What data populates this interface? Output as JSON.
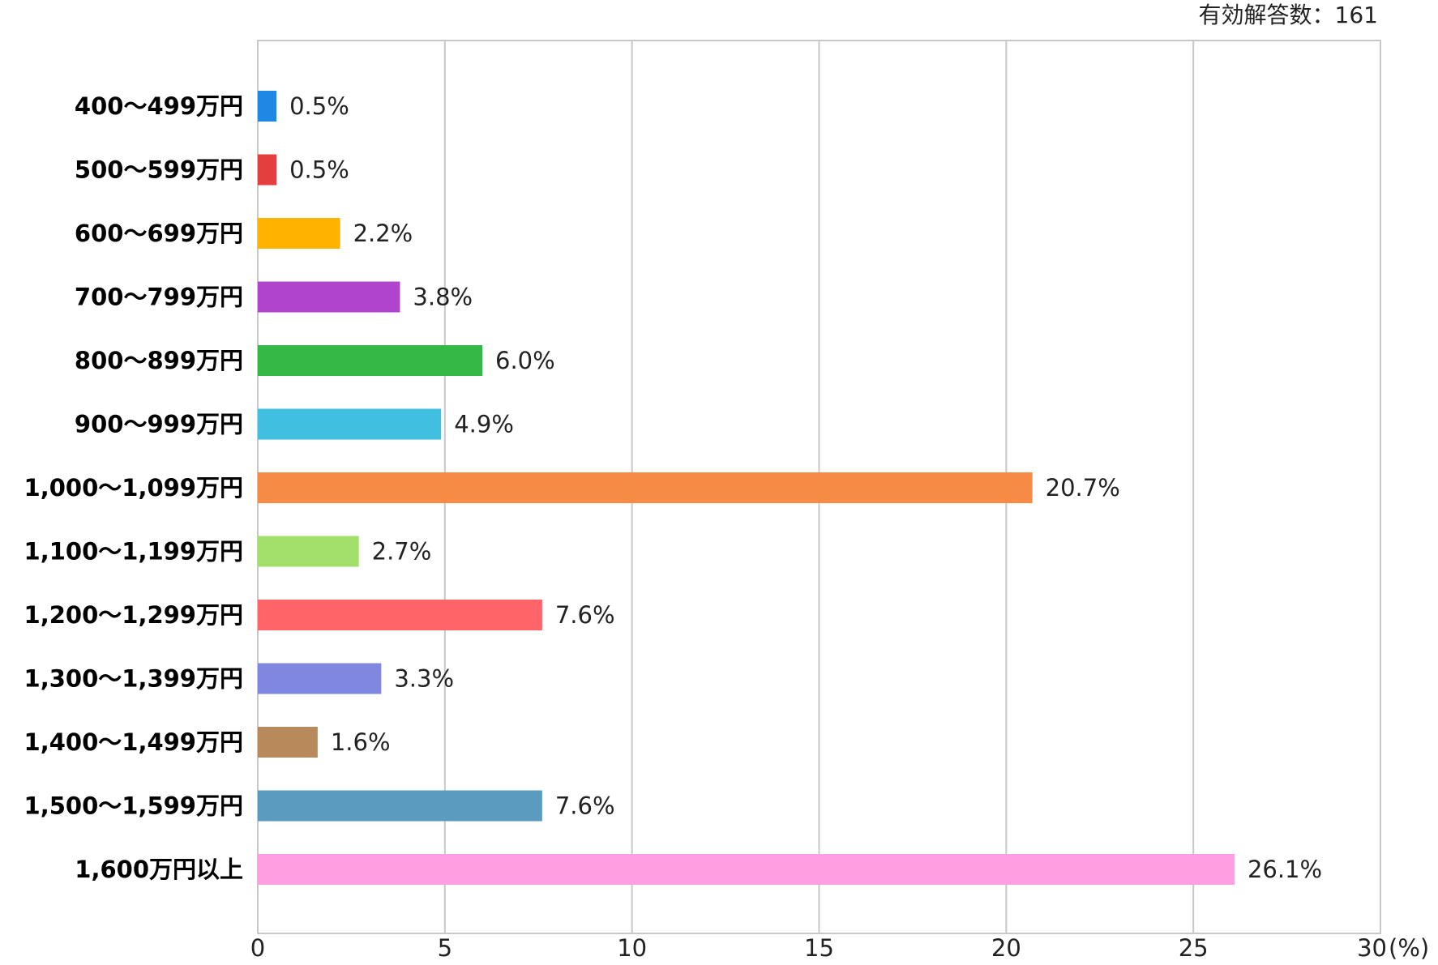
{
  "note": "有効解答数：161",
  "chart_data": {
    "type": "bar",
    "orientation": "horizontal",
    "categories": [
      "400〜499万円",
      "500〜599万円",
      "600〜699万円",
      "700〜799万円",
      "800〜899万円",
      "900〜999万円",
      "1,000〜1,099万円",
      "1,100〜1,199万円",
      "1,200〜1,299万円",
      "1,300〜1,399万円",
      "1,400〜1,499万円",
      "1,500〜1,599万円",
      "1,600万円以上"
    ],
    "values": [
      0.5,
      0.5,
      2.2,
      3.8,
      6.0,
      4.9,
      20.7,
      2.7,
      7.6,
      3.3,
      1.6,
      7.6,
      26.1
    ],
    "value_labels": [
      "0.5%",
      "0.5%",
      "2.2%",
      "3.8%",
      "6.0%",
      "4.9%",
      "20.7%",
      "2.7%",
      "7.6%",
      "3.3%",
      "1.6%",
      "7.6%",
      "26.1%"
    ],
    "colors": [
      "#1f88e5",
      "#e53e3e",
      "#ffb300",
      "#b044cc",
      "#35b845",
      "#40bfe0",
      "#f58b45",
      "#a3df6b",
      "#ff6469",
      "#7f87e0",
      "#b8895a",
      "#5a9bbf",
      "#ff9ee0"
    ],
    "xlim": [
      0,
      30
    ],
    "xticks": [
      0,
      5,
      10,
      15,
      20,
      25,
      30
    ],
    "xtick_labels": [
      "0",
      "5",
      "10",
      "15",
      "20",
      "25",
      "30"
    ],
    "x_unit": "(%)",
    "grid": true,
    "legend": "none"
  }
}
